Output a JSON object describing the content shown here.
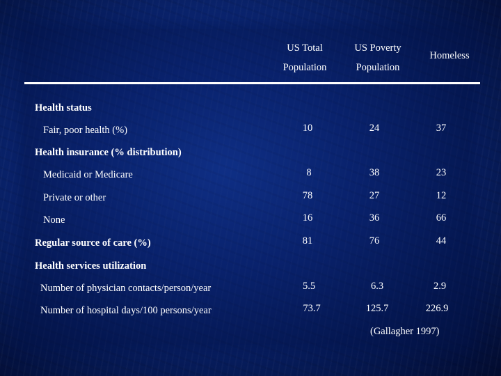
{
  "header": {
    "col1_line1": "US Total",
    "col1_line2": "Population",
    "col2_line1": "US Poverty",
    "col2_line2": "Population",
    "col3": "Homeless"
  },
  "sections": {
    "health_status": "Health status",
    "health_insurance": "Health insurance (% distribution)",
    "regular_source": "Regular source of care (%)",
    "utilization": "Health services utilization"
  },
  "rows": {
    "fair_poor": {
      "label": "Fair, poor health (%)",
      "v1": "10",
      "v2": "24",
      "v3": "37"
    },
    "medicaid": {
      "label": "Medicaid or Medicare",
      "v1": "8",
      "v2": "38",
      "v3": "23"
    },
    "private": {
      "label": "Private or other",
      "v1": "78",
      "v2": "27",
      "v3": "12"
    },
    "none": {
      "label": "None",
      "v1": "16",
      "v2": "36",
      "v3": "66"
    },
    "regular": {
      "v1": "81",
      "v2": "76",
      "v3": "44"
    },
    "physician": {
      "label": "Number of physician contacts/person/year",
      "v1": "5.5",
      "v2": "6.3",
      "v3": "2.9"
    },
    "hospital": {
      "label": "Number of hospital days/100 persons/year",
      "v1": "73.7",
      "v2": "125.7",
      "v3": "226.9"
    }
  },
  "citation": "(Gallagher 1997)"
}
